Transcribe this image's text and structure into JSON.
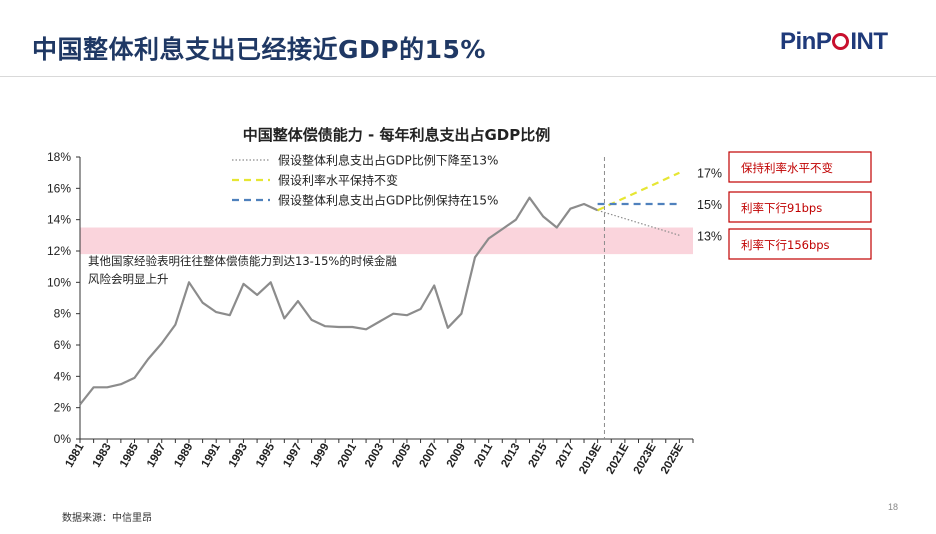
{
  "page": {
    "title": "中国整体利息支出已经接近GDP的15%",
    "logo_text_1": "PinP",
    "logo_text_2": "INT",
    "source": "数据来源：中信里昂",
    "page_number": "18"
  },
  "chart_data": {
    "type": "line",
    "title": "中国整体偿债能力 - 每年利息支出占GDP比例",
    "ylim": [
      0,
      18
    ],
    "y_ticks": [
      "0%",
      "2%",
      "4%",
      "6%",
      "8%",
      "10%",
      "12%",
      "14%",
      "16%",
      "18%"
    ],
    "x_start": 1981,
    "x_end": 2026,
    "x_ticks": [
      "1981",
      "1983",
      "1985",
      "1987",
      "1989",
      "1991",
      "1993",
      "1995",
      "1997",
      "1999",
      "2001",
      "2003",
      "2005",
      "2007",
      "2009",
      "2011",
      "2013",
      "2015",
      "2017",
      "2019E",
      "2021E",
      "2023E",
      "2025E"
    ],
    "series": [
      {
        "name": "history",
        "color": "#8c8c8c",
        "x": [
          1981,
          1982,
          1983,
          1984,
          1985,
          1986,
          1987,
          1988,
          1989,
          1990,
          1991,
          1992,
          1993,
          1994,
          1995,
          1996,
          1997,
          1998,
          1999,
          2000,
          2001,
          2002,
          2003,
          2004,
          2005,
          2006,
          2007,
          2008,
          2009,
          2010,
          2011,
          2012,
          2013,
          2014,
          2015,
          2016,
          2017,
          2018,
          2019
        ],
        "y": [
          2.2,
          3.3,
          3.3,
          3.5,
          3.9,
          5.1,
          6.1,
          7.3,
          10.0,
          8.7,
          8.1,
          7.9,
          9.9,
          9.2,
          10.0,
          7.7,
          8.8,
          7.6,
          7.2,
          7.15,
          7.15,
          7.0,
          7.5,
          8.0,
          7.9,
          8.3,
          9.8,
          7.1,
          8.0,
          11.6,
          12.8,
          13.4,
          14.0,
          15.4,
          14.2,
          13.5,
          14.7,
          15.0,
          14.6
        ]
      },
      {
        "name": "假设整体利息支出占GDP比例下降至13%",
        "color": "#8c8c8c",
        "style": "dotted",
        "x": [
          2019,
          2025
        ],
        "y": [
          14.6,
          13.0
        ]
      },
      {
        "name": "假设利率水平保持不变",
        "color": "#e6e633",
        "style": "dashed",
        "x": [
          2019,
          2025
        ],
        "y": [
          14.6,
          17.0
        ]
      },
      {
        "name": "假设整体利息支出占GDP比例保持在15%",
        "color": "#4f81bd",
        "style": "dashed",
        "x": [
          2019,
          2025
        ],
        "y": [
          15.0,
          15.0
        ]
      }
    ],
    "projection_divider_x": 2019.5,
    "band": {
      "y_from": 11.8,
      "y_to": 13.5,
      "color": "#fad4dc"
    },
    "band_note_line1": "其他国家经验表明往往整体偿债能力到达13-15%的时候金融",
    "band_note_line2": "风险会明显上升",
    "end_labels": [
      {
        "text": "17%",
        "y": 17.0
      },
      {
        "text": "15%",
        "y": 15.0
      },
      {
        "text": "13%",
        "y": 13.0
      }
    ],
    "annotations": [
      {
        "text": "保持利率水平不变",
        "color": "#c00000"
      },
      {
        "text": "利率下行91bps",
        "color": "#c00000"
      },
      {
        "text": "利率下行156bps",
        "color": "#c00000"
      }
    ],
    "legend_position": "top-center",
    "grid": false
  }
}
